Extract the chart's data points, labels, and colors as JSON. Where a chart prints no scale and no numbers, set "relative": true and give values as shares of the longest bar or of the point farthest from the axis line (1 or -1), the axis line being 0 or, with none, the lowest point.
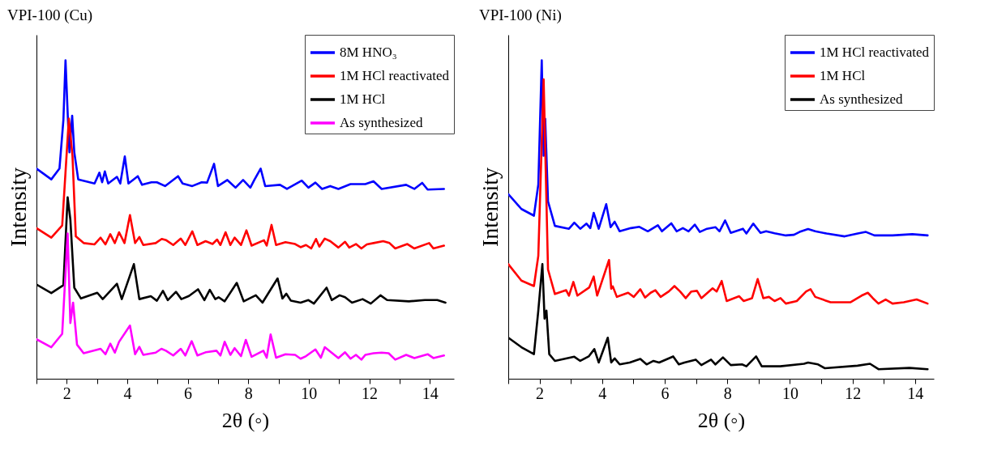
{
  "chart_data": [
    {
      "type": "line",
      "title": "VPI-100 (Cu)",
      "xlabel": "2θ (◦)",
      "ylabel": "Intensity",
      "relative": true,
      "legend": "top right",
      "xlim": [
        1,
        14.8
      ],
      "xticks": [
        {
          "value": 1,
          "label": null
        },
        2,
        {
          "value": 3,
          "label": null
        },
        4,
        {
          "value": 5,
          "label": null
        },
        6,
        {
          "value": 7,
          "label": null
        },
        8,
        {
          "value": 9,
          "label": null
        },
        10,
        {
          "value": 11,
          "label": null
        },
        12,
        {
          "value": 13,
          "label": null
        },
        14
      ],
      "series": [
        {
          "name": "8M HNO₃",
          "color": "#0000ff",
          "x": [
            1.0,
            1.49,
            1.76,
            1.89,
            1.96,
            2.04,
            2.09,
            2.18,
            2.25,
            2.38,
            2.92,
            3.08,
            3.17,
            3.26,
            3.37,
            3.66,
            3.77,
            3.92,
            4.04,
            4.35,
            4.49,
            4.8,
            4.98,
            5.25,
            5.68,
            5.83,
            6.15,
            6.46,
            6.64,
            6.87,
            7.0,
            7.31,
            7.58,
            7.83,
            8.07,
            8.2,
            8.41,
            8.56,
            9.05,
            9.28,
            9.77,
            9.99,
            10.22,
            10.44,
            10.71,
            10.98,
            11.38,
            11.87,
            12.14,
            12.41,
            13.22,
            13.49,
            13.75,
            13.93,
            14.47
          ],
          "values": [
            0.66,
            0.626,
            0.66,
            0.813,
            1.0,
            0.813,
            0.711,
            0.826,
            0.711,
            0.626,
            0.613,
            0.647,
            0.617,
            0.651,
            0.613,
            0.634,
            0.613,
            0.698,
            0.613,
            0.636,
            0.609,
            0.617,
            0.617,
            0.605,
            0.636,
            0.613,
            0.605,
            0.617,
            0.616,
            0.675,
            0.605,
            0.624,
            0.6,
            0.624,
            0.6,
            0.624,
            0.66,
            0.605,
            0.609,
            0.596,
            0.622,
            0.6,
            0.616,
            0.596,
            0.605,
            0.596,
            0.611,
            0.611,
            0.62,
            0.596,
            0.609,
            0.596,
            0.615,
            0.594,
            0.596
          ]
        },
        {
          "name": "1M HCl reactivated",
          "color": "#ff0000",
          "x": [
            1.0,
            1.49,
            1.85,
            2.07,
            2.19,
            2.3,
            2.56,
            2.92,
            3.12,
            3.28,
            3.44,
            3.59,
            3.73,
            3.91,
            4.09,
            4.26,
            4.4,
            4.53,
            4.94,
            5.14,
            5.29,
            5.52,
            5.77,
            5.92,
            6.15,
            6.32,
            6.59,
            6.82,
            6.97,
            7.08,
            7.25,
            7.41,
            7.55,
            7.76,
            7.94,
            8.11,
            8.52,
            8.61,
            8.77,
            8.92,
            9.23,
            9.55,
            9.73,
            9.91,
            10.08,
            10.24,
            10.35,
            10.53,
            10.71,
            10.98,
            11.2,
            11.34,
            11.56,
            11.74,
            11.92,
            12.14,
            12.46,
            12.67,
            12.86,
            13.26,
            13.49,
            13.98,
            14.12,
            14.47
          ],
          "values": [
            0.473,
            0.443,
            0.481,
            0.817,
            0.7,
            0.447,
            0.426,
            0.422,
            0.443,
            0.422,
            0.454,
            0.426,
            0.46,
            0.426,
            0.514,
            0.426,
            0.445,
            0.42,
            0.426,
            0.439,
            0.435,
            0.42,
            0.44,
            0.42,
            0.463,
            0.42,
            0.432,
            0.423,
            0.437,
            0.42,
            0.46,
            0.42,
            0.443,
            0.42,
            0.466,
            0.418,
            0.435,
            0.418,
            0.483,
            0.42,
            0.429,
            0.423,
            0.413,
            0.42,
            0.409,
            0.439,
            0.415,
            0.44,
            0.432,
            0.412,
            0.43,
            0.412,
            0.423,
            0.409,
            0.422,
            0.426,
            0.432,
            0.426,
            0.409,
            0.423,
            0.409,
            0.426,
            0.409,
            0.418
          ]
        },
        {
          "name": "1M HCl",
          "color": "#000000",
          "x": [
            1.0,
            1.49,
            1.89,
            2.03,
            2.12,
            2.25,
            2.47,
            3.01,
            3.19,
            3.66,
            3.82,
            4.22,
            4.4,
            4.78,
            4.98,
            5.18,
            5.34,
            5.61,
            5.79,
            6.04,
            6.34,
            6.55,
            6.73,
            6.91,
            7.02,
            7.22,
            7.62,
            7.85,
            8.25,
            8.47,
            8.97,
            9.13,
            9.26,
            9.41,
            9.73,
            9.99,
            10.17,
            10.59,
            10.76,
            11.02,
            11.2,
            11.43,
            11.78,
            12.05,
            12.37,
            12.59,
            13.31,
            13.84,
            14.25,
            14.52
          ],
          "values": [
            0.296,
            0.269,
            0.294,
            0.57,
            0.5,
            0.286,
            0.252,
            0.27,
            0.25,
            0.298,
            0.25,
            0.36,
            0.25,
            0.259,
            0.245,
            0.276,
            0.247,
            0.273,
            0.25,
            0.26,
            0.281,
            0.247,
            0.279,
            0.25,
            0.256,
            0.243,
            0.301,
            0.243,
            0.262,
            0.239,
            0.315,
            0.252,
            0.267,
            0.245,
            0.239,
            0.247,
            0.236,
            0.286,
            0.247,
            0.262,
            0.256,
            0.239,
            0.25,
            0.236,
            0.262,
            0.247,
            0.243,
            0.247,
            0.247,
            0.239
          ]
        },
        {
          "name": "As synthesized",
          "color": "#ff00ff",
          "x": [
            1.0,
            1.49,
            1.85,
            2.03,
            2.12,
            2.21,
            2.34,
            2.56,
            3.12,
            3.28,
            3.44,
            3.59,
            3.73,
            4.09,
            4.26,
            4.4,
            4.53,
            4.94,
            5.13,
            5.28,
            5.52,
            5.77,
            5.92,
            6.13,
            6.32,
            6.59,
            6.95,
            7.08,
            7.22,
            7.41,
            7.55,
            7.76,
            7.92,
            8.11,
            8.5,
            8.61,
            8.74,
            8.92,
            9.23,
            9.55,
            9.73,
            9.91,
            10.22,
            10.4,
            10.53,
            10.98,
            11.2,
            11.38,
            11.56,
            11.74,
            11.87,
            12.14,
            12.41,
            12.64,
            12.86,
            13.22,
            13.49,
            13.93,
            14.12,
            14.47
          ],
          "values": [
            0.124,
            0.099,
            0.141,
            0.456,
            0.175,
            0.239,
            0.107,
            0.08,
            0.094,
            0.077,
            0.11,
            0.082,
            0.116,
            0.167,
            0.077,
            0.1,
            0.075,
            0.082,
            0.094,
            0.088,
            0.073,
            0.094,
            0.073,
            0.118,
            0.073,
            0.083,
            0.088,
            0.073,
            0.116,
            0.075,
            0.096,
            0.071,
            0.122,
            0.069,
            0.088,
            0.066,
            0.139,
            0.066,
            0.077,
            0.075,
            0.063,
            0.071,
            0.092,
            0.066,
            0.099,
            0.065,
            0.083,
            0.063,
            0.075,
            0.06,
            0.075,
            0.08,
            0.082,
            0.08,
            0.06,
            0.075,
            0.065,
            0.077,
            0.065,
            0.073
          ]
        }
      ]
    },
    {
      "type": "line",
      "title": "VPI-100 (Ni)",
      "xlabel": "2θ (◦)",
      "ylabel": "Intensity",
      "relative": true,
      "legend": "top right",
      "xlim": [
        1,
        14.6
      ],
      "xticks": [
        {
          "value": 1,
          "label": null
        },
        2,
        {
          "value": 3,
          "label": null
        },
        4,
        {
          "value": 5,
          "label": null
        },
        6,
        {
          "value": 7,
          "label": null
        },
        8,
        {
          "value": 9,
          "label": null
        },
        10,
        {
          "value": 11,
          "label": null
        },
        12,
        {
          "value": 13,
          "label": null
        },
        14
      ],
      "series": [
        {
          "name": "1M HCl reactivated",
          "color": "#0000ff",
          "x": [
            1.0,
            1.42,
            1.82,
            1.96,
            2.07,
            2.13,
            2.18,
            2.27,
            2.49,
            2.94,
            3.11,
            3.3,
            3.5,
            3.62,
            3.73,
            3.89,
            4.13,
            4.27,
            4.4,
            4.56,
            4.92,
            5.19,
            5.46,
            5.78,
            5.91,
            6.21,
            6.38,
            6.58,
            6.76,
            6.96,
            7.12,
            7.35,
            7.62,
            7.75,
            7.93,
            8.11,
            8.5,
            8.61,
            8.83,
            9.06,
            9.24,
            9.51,
            9.87,
            10.13,
            10.31,
            10.58,
            10.81,
            11.17,
            11.75,
            12.2,
            12.43,
            12.7,
            13.28,
            13.91,
            14.4
          ],
          "values": [
            0.58,
            0.533,
            0.512,
            0.61,
            1.0,
            0.7,
            0.816,
            0.557,
            0.48,
            0.471,
            0.49,
            0.471,
            0.487,
            0.473,
            0.521,
            0.471,
            0.548,
            0.476,
            0.493,
            0.463,
            0.473,
            0.477,
            0.463,
            0.482,
            0.463,
            0.488,
            0.463,
            0.473,
            0.463,
            0.484,
            0.461,
            0.471,
            0.476,
            0.463,
            0.497,
            0.458,
            0.471,
            0.456,
            0.487,
            0.458,
            0.463,
            0.457,
            0.45,
            0.452,
            0.461,
            0.47,
            0.463,
            0.456,
            0.447,
            0.457,
            0.461,
            0.45,
            0.45,
            0.454,
            0.45
          ]
        },
        {
          "name": "1M HCl",
          "color": "#ff0000",
          "x": [
            1.0,
            1.42,
            1.82,
            1.96,
            2.13,
            2.27,
            2.49,
            2.85,
            2.94,
            3.08,
            3.21,
            3.59,
            3.73,
            3.84,
            4.22,
            4.29,
            4.34,
            4.47,
            4.83,
            5.01,
            5.22,
            5.37,
            5.55,
            5.7,
            5.87,
            6.13,
            6.31,
            6.49,
            6.67,
            6.85,
            7.03,
            7.17,
            7.53,
            7.66,
            7.82,
            7.98,
            8.38,
            8.52,
            8.79,
            8.97,
            9.15,
            9.33,
            9.51,
            9.7,
            9.87,
            10.22,
            10.52,
            10.66,
            10.81,
            11.3,
            11.93,
            12.29,
            12.49,
            12.65,
            12.83,
            13.06,
            13.28,
            13.64,
            14.05,
            14.4
          ],
          "values": [
            0.36,
            0.308,
            0.291,
            0.386,
            0.94,
            0.343,
            0.266,
            0.278,
            0.261,
            0.304,
            0.261,
            0.287,
            0.321,
            0.261,
            0.373,
            0.283,
            0.29,
            0.257,
            0.27,
            0.257,
            0.281,
            0.255,
            0.27,
            0.278,
            0.257,
            0.274,
            0.291,
            0.274,
            0.253,
            0.274,
            0.276,
            0.253,
            0.284,
            0.274,
            0.307,
            0.244,
            0.259,
            0.244,
            0.253,
            0.313,
            0.253,
            0.257,
            0.244,
            0.253,
            0.236,
            0.244,
            0.274,
            0.281,
            0.257,
            0.24,
            0.24,
            0.261,
            0.27,
            0.253,
            0.236,
            0.249,
            0.236,
            0.24,
            0.249,
            0.236
          ]
        },
        {
          "name": "As synthesized",
          "color": "#000000",
          "x": [
            1.0,
            1.42,
            1.82,
            1.96,
            2.09,
            2.16,
            2.22,
            2.31,
            2.49,
            3.11,
            3.3,
            3.57,
            3.75,
            3.89,
            4.18,
            4.29,
            4.4,
            4.56,
            4.88,
            5.22,
            5.42,
            5.64,
            5.82,
            6.27,
            6.45,
            6.63,
            6.99,
            7.17,
            7.48,
            7.62,
            7.86,
            8.11,
            8.47,
            8.61,
            8.92,
            9.1,
            9.69,
            10.45,
            10.58,
            10.9,
            11.12,
            12.16,
            12.56,
            12.83,
            13.82,
            14.4
          ],
          "values": [
            0.129,
            0.099,
            0.077,
            0.214,
            0.36,
            0.189,
            0.214,
            0.077,
            0.056,
            0.069,
            0.056,
            0.07,
            0.093,
            0.051,
            0.129,
            0.051,
            0.064,
            0.045,
            0.051,
            0.062,
            0.045,
            0.056,
            0.051,
            0.07,
            0.045,
            0.051,
            0.06,
            0.043,
            0.06,
            0.045,
            0.067,
            0.043,
            0.045,
            0.039,
            0.07,
            0.039,
            0.039,
            0.047,
            0.051,
            0.045,
            0.033,
            0.041,
            0.047,
            0.03,
            0.034,
            0.03
          ]
        }
      ]
    }
  ]
}
